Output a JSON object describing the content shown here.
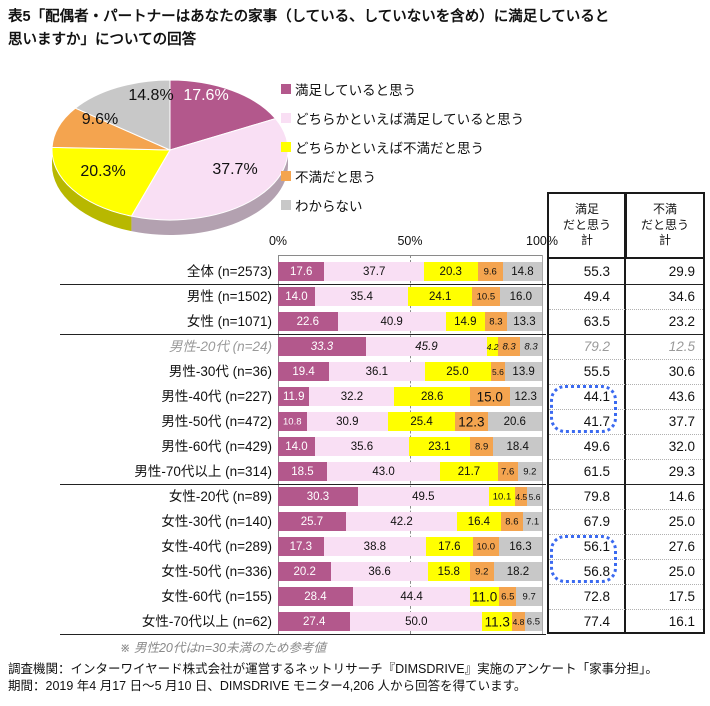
{
  "title": "表5「配偶者・パートナーはあなたの家事（している、していないを含め）に満足していると\n思いますか」についての回答",
  "legend": {
    "items": [
      {
        "label": "満足していると思う",
        "color": "#b3588c"
      },
      {
        "label": "どちらかといえば満足していると思う",
        "color": "#f9dff4"
      },
      {
        "label": "どちらかといえば不満だと思う",
        "color": "#ffff00"
      },
      {
        "label": "不満だと思う",
        "color": "#f4a44f"
      },
      {
        "label": "わからない",
        "color": "#c8c8c8"
      }
    ]
  },
  "totals_header": {
    "col1": "満足\nだと思う\n計",
    "col2": "不満\nだと思う\n計"
  },
  "axis": {
    "ticks": [
      "0%",
      "50%",
      "100%"
    ]
  },
  "colors": {
    "segments": [
      "#b3588c",
      "#f9dff4",
      "#ffff00",
      "#f4a44f",
      "#c8c8c8"
    ],
    "reference_text": "#9a9a9a",
    "highlight_border": "#3b6af0"
  },
  "note": "※ 男性20代はn=30未満のため参考値",
  "footer": {
    "line1": "調査機関：インターワイヤード株式会社が運営するネットリサーチ『DIMSDRIVE』実施のアンケート「家事分担」。",
    "line2": "期間：2019 年4 月17 日～5 月10 日、DIMSDRIVE モニター4,206 人から回答を得ています。"
  },
  "chart_data": [
    {
      "type": "pie",
      "title": "配偶者・パートナーの家事満足度（全体）",
      "labels": [
        "満足していると思う",
        "どちらかといえば満足していると思う",
        "どちらかといえば不満だと思う",
        "不満だと思う",
        "わからない"
      ],
      "values": [
        17.6,
        37.7,
        20.3,
        9.6,
        14.8
      ],
      "value_labels": [
        "17.6%",
        "37.7%",
        "20.3%",
        "9.6%",
        "14.8%"
      ],
      "colors": [
        "#b3588c",
        "#f9dff4",
        "#ffff00",
        "#f4a44f",
        "#c8c8c8"
      ],
      "style": "3d",
      "legend_position": "right"
    },
    {
      "type": "bar",
      "subtype": "stacked-horizontal",
      "xlim": [
        0,
        100
      ],
      "tick_labels": [
        "0%",
        "50%",
        "100%"
      ],
      "series_labels": [
        "満足していると思う",
        "どちらかといえば満足していると思う",
        "どちらかといえば不満だと思う",
        "不満だと思う",
        "わからない"
      ],
      "totals_columns": [
        "満足だと思う計",
        "不満だと思う計"
      ],
      "rows": [
        {
          "label": "全体 (n=2573)",
          "values": [
            17.6,
            37.7,
            20.3,
            9.6,
            14.8
          ],
          "totals": [
            55.3,
            29.9
          ],
          "reference": false,
          "em": []
        },
        {
          "label": "男性 (n=1502)",
          "values": [
            14.0,
            35.4,
            24.1,
            10.5,
            16.0
          ],
          "totals": [
            49.4,
            34.6
          ],
          "reference": false,
          "em": []
        },
        {
          "label": "女性 (n=1071)",
          "values": [
            22.6,
            40.9,
            14.9,
            8.3,
            13.3
          ],
          "totals": [
            63.5,
            23.2
          ],
          "reference": false,
          "em": []
        },
        {
          "label": "男性-20代 (n=24)",
          "values": [
            33.3,
            45.9,
            4.2,
            8.3,
            8.3
          ],
          "totals": [
            79.2,
            12.5
          ],
          "reference": true,
          "em": []
        },
        {
          "label": "男性-30代 (n=36)",
          "values": [
            19.4,
            36.1,
            25.0,
            5.6,
            13.9
          ],
          "totals": [
            55.5,
            30.6
          ],
          "reference": false,
          "em": []
        },
        {
          "label": "男性-40代 (n=227)",
          "values": [
            11.9,
            32.2,
            28.6,
            15.0,
            12.3
          ],
          "totals": [
            44.1,
            43.6
          ],
          "reference": false,
          "em": [
            3
          ]
        },
        {
          "label": "男性-50代 (n=472)",
          "values": [
            10.8,
            30.9,
            25.4,
            12.3,
            20.6
          ],
          "totals": [
            41.7,
            37.7
          ],
          "reference": false,
          "em": [
            3
          ]
        },
        {
          "label": "男性-60代 (n=429)",
          "values": [
            14.0,
            35.6,
            23.1,
            8.9,
            18.4
          ],
          "totals": [
            49.6,
            32.0
          ],
          "reference": false,
          "em": []
        },
        {
          "label": "男性-70代以上 (n=314)",
          "values": [
            18.5,
            43.0,
            21.7,
            7.6,
            9.2
          ],
          "totals": [
            61.5,
            29.3
          ],
          "reference": false,
          "em": []
        },
        {
          "label": "女性-20代 (n=89)",
          "values": [
            30.3,
            49.5,
            10.1,
            4.5,
            5.6
          ],
          "totals": [
            79.8,
            14.6
          ],
          "reference": false,
          "em": []
        },
        {
          "label": "女性-30代 (n=140)",
          "values": [
            25.7,
            42.2,
            16.4,
            8.6,
            7.1
          ],
          "totals": [
            67.9,
            25.0
          ],
          "reference": false,
          "em": []
        },
        {
          "label": "女性-40代 (n=289)",
          "values": [
            17.3,
            38.8,
            17.6,
            10.0,
            16.3
          ],
          "totals": [
            56.1,
            27.6
          ],
          "reference": false,
          "em": []
        },
        {
          "label": "女性-50代 (n=336)",
          "values": [
            20.2,
            36.6,
            15.8,
            9.2,
            18.2
          ],
          "totals": [
            56.8,
            25.0
          ],
          "reference": false,
          "em": []
        },
        {
          "label": "女性-60代 (n=155)",
          "values": [
            28.4,
            44.4,
            11.0,
            6.5,
            9.7
          ],
          "totals": [
            72.8,
            17.5
          ],
          "reference": false,
          "em": [
            2
          ]
        },
        {
          "label": "女性-70代以上 (n=62)",
          "values": [
            27.4,
            50.0,
            11.3,
            4.8,
            6.5
          ],
          "totals": [
            77.4,
            16.1
          ],
          "reference": false,
          "em": [
            2
          ]
        }
      ],
      "highlights": [
        {
          "column": "満足だと思う計",
          "rows": [
            "男性-40代 (n=227)",
            "男性-50代 (n=472)"
          ],
          "values": [
            44.1,
            41.7
          ]
        },
        {
          "column": "満足だと思う計",
          "rows": [
            "女性-40代 (n=289)",
            "女性-50代 (n=336)"
          ],
          "values": [
            56.1,
            56.8
          ]
        }
      ]
    }
  ]
}
